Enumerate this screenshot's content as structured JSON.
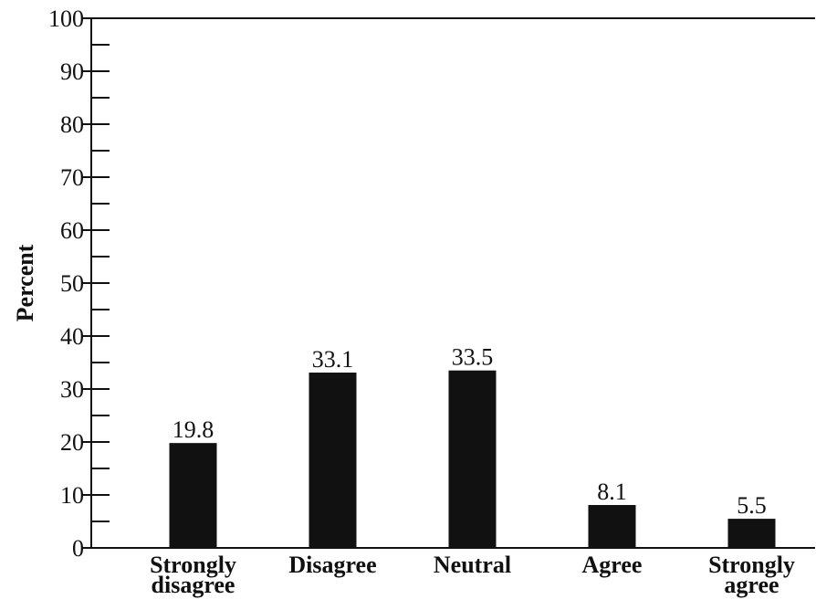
{
  "chart_data": {
    "type": "bar",
    "y_label": "Percent",
    "categories": [
      "Strongly disagree",
      "Disagree",
      "Neutral",
      "Agree",
      "Strongly agree"
    ],
    "values": [
      19.8,
      33.1,
      33.5,
      8.1,
      5.5
    ],
    "color": "#111111",
    "ylim": [
      0,
      100
    ],
    "yticks": [
      0,
      10,
      20,
      30,
      40,
      50,
      60,
      70,
      80,
      90,
      100
    ],
    "minor_yticks": [
      5,
      15,
      25,
      35,
      45,
      55,
      65,
      75,
      85,
      95
    ],
    "grid": false
  }
}
